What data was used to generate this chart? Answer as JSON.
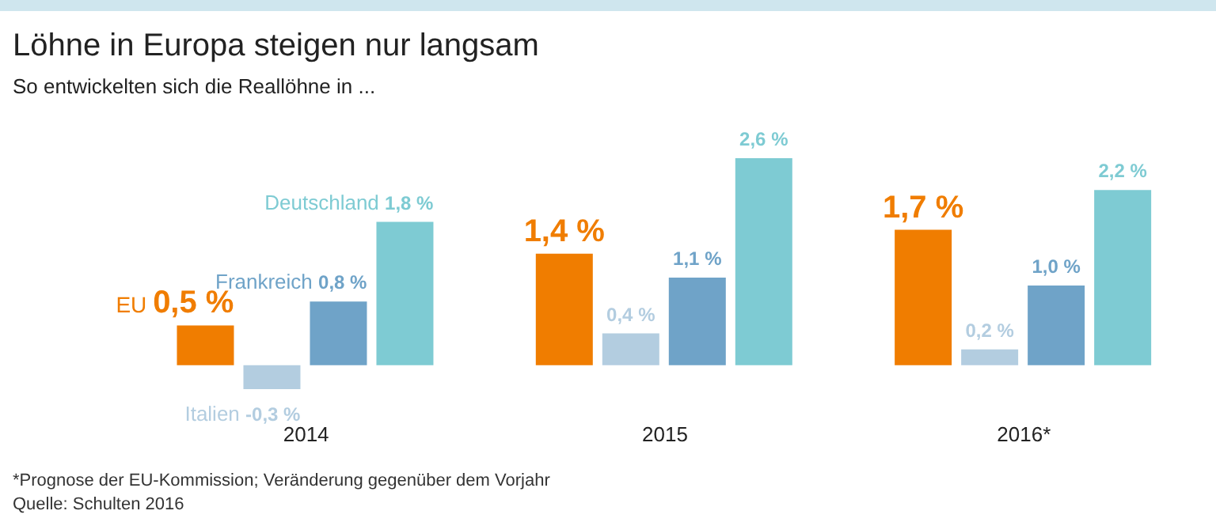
{
  "chart_data": {
    "type": "bar",
    "title": "Löhne in Europa steigen nur langsam",
    "subtitle": "So entwickelten sich die Reallöhne in ...",
    "categories": [
      "2014",
      "2015",
      "2016*"
    ],
    "series": [
      {
        "name": "EU",
        "color": "#f07d00",
        "values": [
          0.5,
          1.4,
          1.7
        ],
        "value_labels": [
          "0,5 %",
          "1,4 %",
          "1,7 %"
        ]
      },
      {
        "name": "Italien",
        "color": "#b3cde0",
        "values": [
          -0.3,
          0.4,
          0.2
        ],
        "value_labels": [
          "-0,3 %",
          "0,4 %",
          "0,2 %"
        ]
      },
      {
        "name": "Frankreich",
        "color": "#6fa3c8",
        "values": [
          0.8,
          1.1,
          1.0
        ],
        "value_labels": [
          "0,8 %",
          "1,1 %",
          "1,0 %"
        ]
      },
      {
        "name": "Deutschland",
        "color": "#7ecbd3",
        "values": [
          1.8,
          2.6,
          2.2
        ],
        "value_labels": [
          "1,8 %",
          "2,6 %",
          "2,2 %"
        ]
      }
    ],
    "annotations": [
      "*Prognose der EU-Kommission; Veränderung gegenüber dem Vorjahr",
      "Quelle: Schulten 2016"
    ]
  }
}
